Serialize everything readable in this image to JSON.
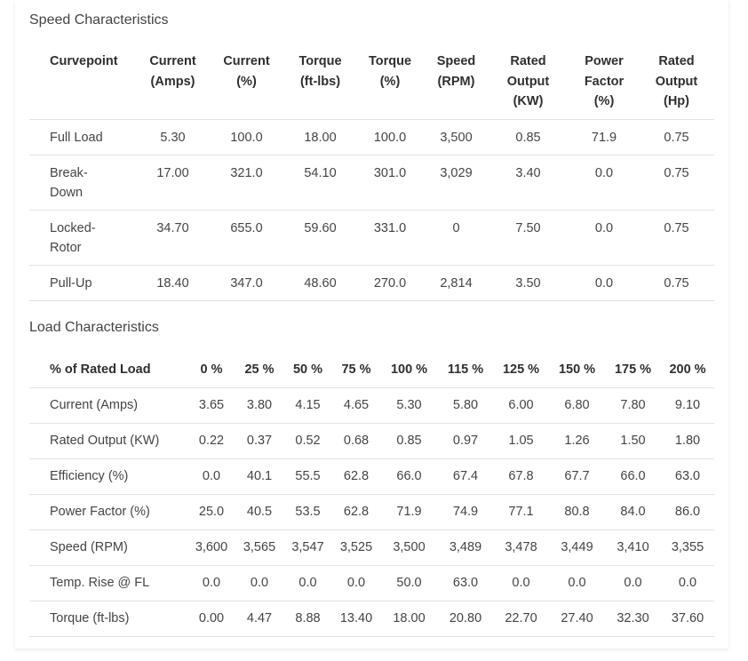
{
  "speed": {
    "title": "Speed Characteristics",
    "headers": [
      {
        "l1": "Curvepoint",
        "l2": "",
        "l3": ""
      },
      {
        "l1": "Current",
        "l2": "(Amps)",
        "l3": ""
      },
      {
        "l1": "Current",
        "l2": "(%)",
        "l3": ""
      },
      {
        "l1": "Torque",
        "l2": "(ft-lbs)",
        "l3": ""
      },
      {
        "l1": "Torque",
        "l2": "(%)",
        "l3": ""
      },
      {
        "l1": "Speed",
        "l2": "(RPM)",
        "l3": ""
      },
      {
        "l1": "Rated",
        "l2": "Output",
        "l3": "(KW)"
      },
      {
        "l1": "Power",
        "l2": "Factor",
        "l3": "(%)"
      },
      {
        "l1": "Rated",
        "l2": "Output",
        "l3": "(Hp)"
      }
    ],
    "rows": [
      {
        "l1": "Full Load",
        "l2": "",
        "cells": [
          "5.30",
          "100.0",
          "18.00",
          "100.0",
          "3,500",
          "0.85",
          "71.9",
          "0.75"
        ]
      },
      {
        "l1": "Break-",
        "l2": "Down",
        "cells": [
          "17.00",
          "321.0",
          "54.10",
          "301.0",
          "3,029",
          "3.40",
          "0.0",
          "0.75"
        ]
      },
      {
        "l1": "Locked-",
        "l2": "Rotor",
        "cells": [
          "34.70",
          "655.0",
          "59.60",
          "331.0",
          "0",
          "7.50",
          "0.0",
          "0.75"
        ]
      },
      {
        "l1": "Pull-Up",
        "l2": "",
        "cells": [
          "18.40",
          "347.0",
          "48.60",
          "270.0",
          "2,814",
          "3.50",
          "0.0",
          "0.75"
        ]
      }
    ]
  },
  "load": {
    "title": "Load Characteristics",
    "headers": [
      "% of Rated Load",
      "0 %",
      "25 %",
      "50 %",
      "75 %",
      "100 %",
      "115 %",
      "125 %",
      "150 %",
      "175 %",
      "200 %"
    ],
    "rows": [
      {
        "label": "Current (Amps)",
        "cells": [
          "3.65",
          "3.80",
          "4.15",
          "4.65",
          "5.30",
          "5.80",
          "6.00",
          "6.80",
          "7.80",
          "9.10"
        ]
      },
      {
        "label": "Rated Output (KW)",
        "cells": [
          "0.22",
          "0.37",
          "0.52",
          "0.68",
          "0.85",
          "0.97",
          "1.05",
          "1.26",
          "1.50",
          "1.80"
        ]
      },
      {
        "label": "Efficiency (%)",
        "cells": [
          "0.0",
          "40.1",
          "55.5",
          "62.8",
          "66.0",
          "67.4",
          "67.8",
          "67.7",
          "66.0",
          "63.0"
        ]
      },
      {
        "label": "Power Factor (%)",
        "cells": [
          "25.0",
          "40.5",
          "53.5",
          "62.8",
          "71.9",
          "74.9",
          "77.1",
          "80.8",
          "84.0",
          "86.0"
        ]
      },
      {
        "label": "Speed (RPM)",
        "cells": [
          "3,600",
          "3,565",
          "3,547",
          "3,525",
          "3,500",
          "3,489",
          "3,478",
          "3,449",
          "3,410",
          "3,355"
        ]
      },
      {
        "label": "Temp. Rise @ FL",
        "cells": [
          "0.0",
          "0.0",
          "0.0",
          "0.0",
          "50.0",
          "63.0",
          "0.0",
          "0.0",
          "0.0",
          "0.0"
        ]
      },
      {
        "label": "Torque (ft-lbs)",
        "cells": [
          "0.00",
          "4.47",
          "8.88",
          "13.40",
          "18.00",
          "20.80",
          "22.70",
          "27.40",
          "32.30",
          "37.60"
        ]
      }
    ]
  }
}
